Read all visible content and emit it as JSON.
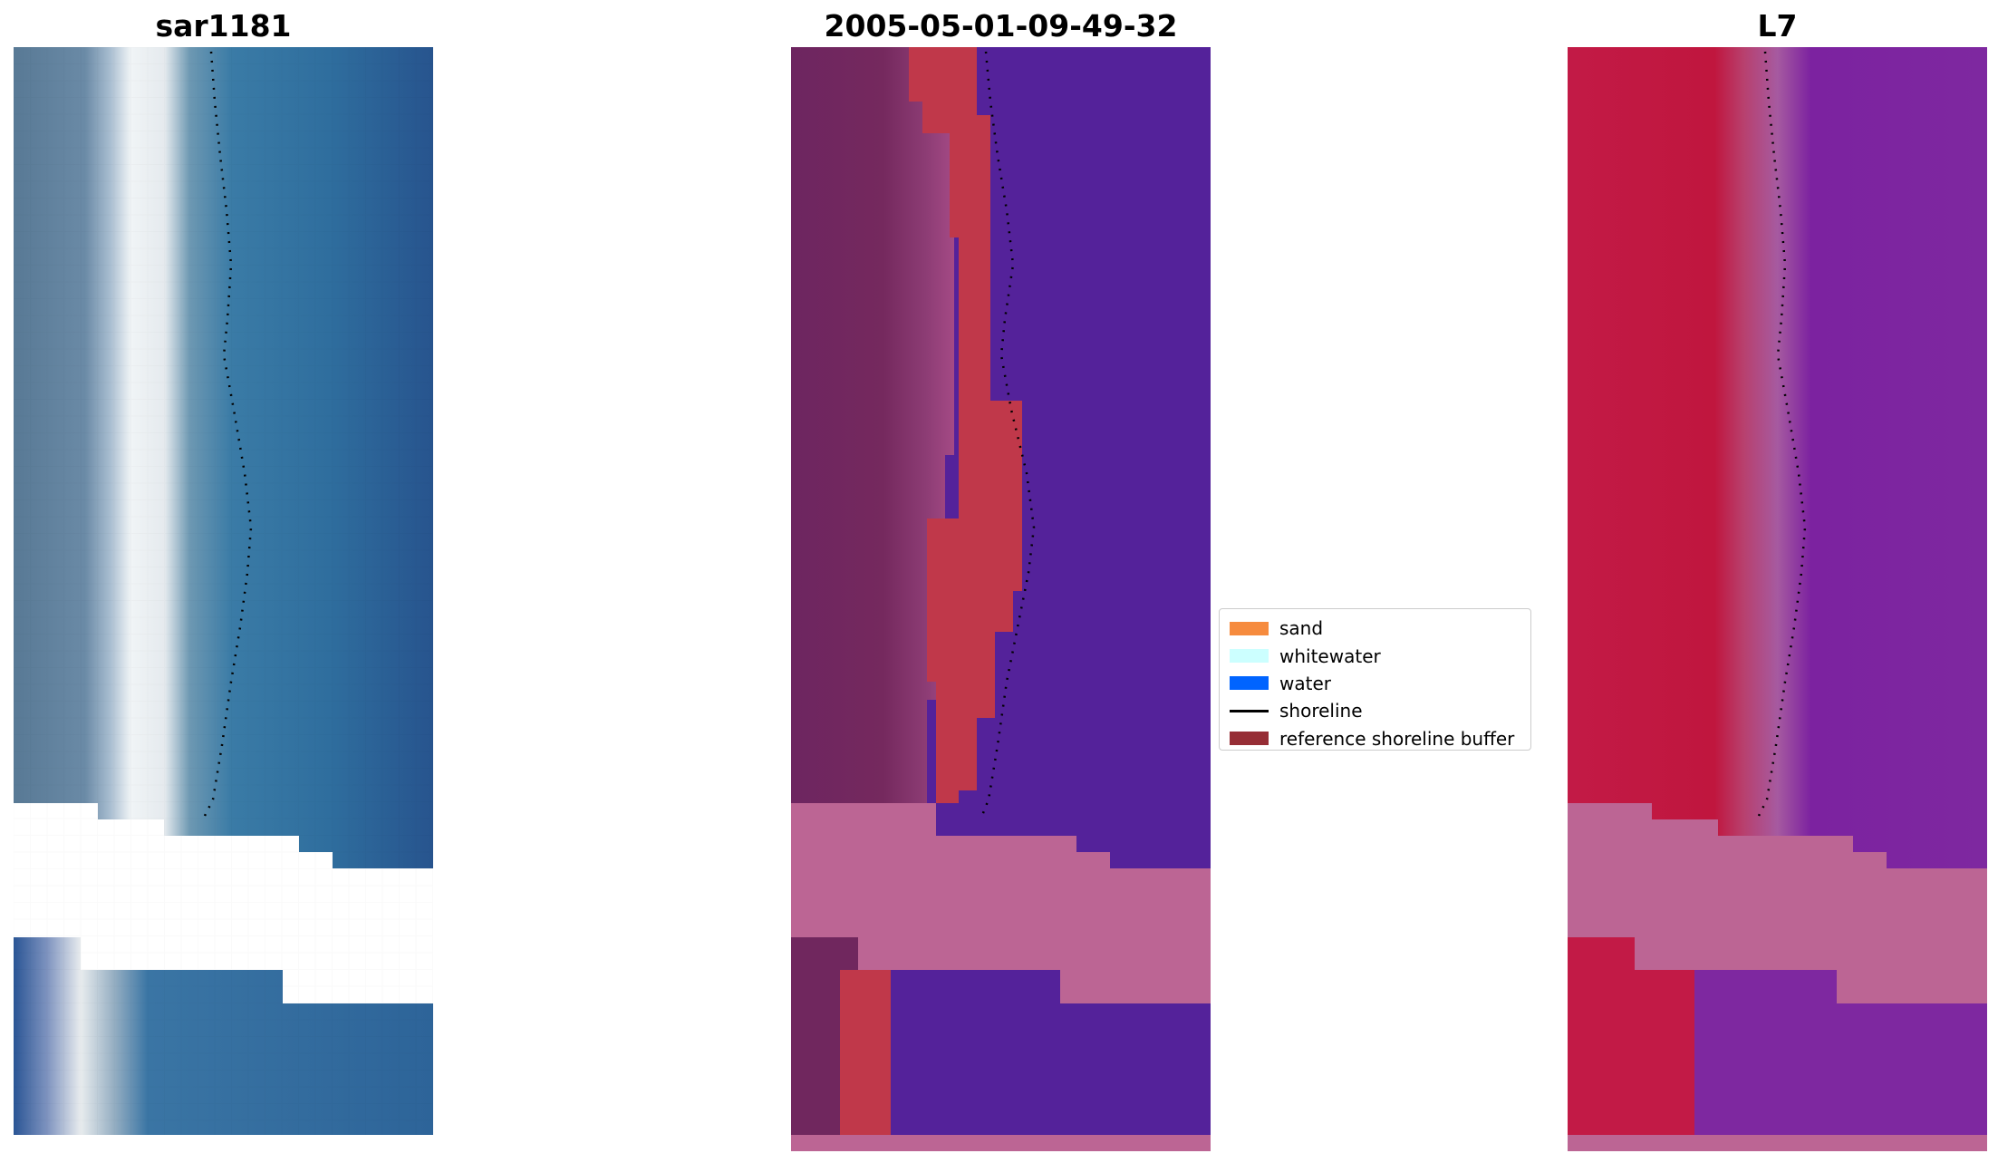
{
  "titles": {
    "rgb": "sar1181",
    "classified": "2005-05-01-09-49-32",
    "mndwi": "L7"
  },
  "legend": {
    "items": [
      {
        "label": "sand",
        "kind": "patch",
        "color": "#f68b3e"
      },
      {
        "label": "whitewater",
        "kind": "patch",
        "color": "#ccffff"
      },
      {
        "label": "water",
        "kind": "patch",
        "color": "#0064ff"
      },
      {
        "label": "shoreline",
        "kind": "line",
        "color": "#000000"
      },
      {
        "label": "reference shoreline buffer",
        "kind": "patch",
        "color": "#962d35"
      }
    ]
  },
  "colors": {
    "rgb_water": "#2e6a98",
    "rgb_land": "#5a7a92",
    "rgb_beach": "#e6ecf0",
    "classified_water": "#54229a",
    "classified_land": "#70275e",
    "classified_buffer": "#c0384a",
    "classified_nodata": "#bc6594",
    "mndwi_land": "#c01845",
    "mndwi_water": "#7e23a0",
    "mndwi_nodata": "#bc6594"
  }
}
